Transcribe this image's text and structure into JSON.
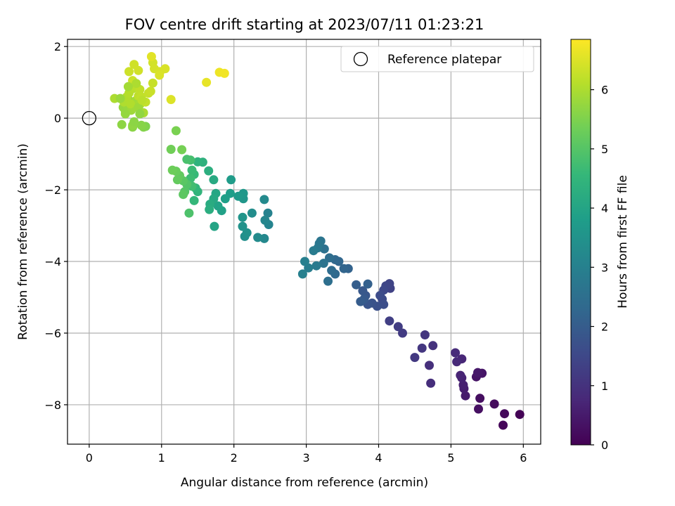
{
  "chart_data": {
    "type": "scatter",
    "title": "FOV centre drift starting at 2023/07/11 01:23:21",
    "xlabel": "Angular distance from reference (arcmin)",
    "ylabel": "Rotation from reference (arcmin)",
    "xlim": [
      -0.3,
      6.24
    ],
    "ylim": [
      -9.1,
      2.2
    ],
    "x_ticks": [
      0,
      1,
      2,
      3,
      4,
      5,
      6
    ],
    "x_tick_labels": [
      "0",
      "1",
      "2",
      "3",
      "4",
      "5",
      "6"
    ],
    "y_ticks": [
      2,
      0,
      -2,
      -4,
      -6,
      -8
    ],
    "y_tick_labels": [
      "2",
      "0",
      "−2",
      "−4",
      "−6",
      "−8"
    ],
    "grid": true,
    "legend": {
      "position": "top-right",
      "label": "Reference platepar"
    },
    "reference_point": {
      "x": 0,
      "y": 0
    },
    "colorbar": {
      "label": "Hours from first FF file",
      "min": 0,
      "max": 6.85,
      "ticks": [
        0,
        1,
        2,
        3,
        4,
        5,
        6
      ],
      "tick_labels": [
        "0",
        "1",
        "2",
        "3",
        "4",
        "5",
        "6"
      ],
      "colormap": "viridis",
      "colors": [
        "#440154",
        "#482878",
        "#3e4989",
        "#31688e",
        "#26828e",
        "#1f9e89",
        "#35b779",
        "#6ece58",
        "#b5de2b",
        "#fde725"
      ]
    },
    "series": [
      {
        "points": [
          [
            5.95,
            -8.27,
            0.05
          ],
          [
            5.72,
            -8.57,
            0.1
          ],
          [
            5.74,
            -8.25,
            0.15
          ],
          [
            5.6,
            -7.98,
            0.2
          ],
          [
            5.4,
            -7.82,
            0.25
          ],
          [
            5.38,
            -8.12,
            0.3
          ],
          [
            5.35,
            -7.22,
            0.35
          ],
          [
            5.43,
            -7.12,
            0.4
          ],
          [
            5.37,
            -7.1,
            0.45
          ],
          [
            5.2,
            -7.75,
            0.5
          ],
          [
            5.18,
            -7.55,
            0.55
          ],
          [
            5.17,
            -7.45,
            0.6
          ],
          [
            5.15,
            -7.25,
            0.65
          ],
          [
            5.13,
            -7.18,
            0.7
          ],
          [
            5.15,
            -6.72,
            0.75
          ],
          [
            5.08,
            -6.8,
            0.8
          ],
          [
            5.06,
            -6.55,
            0.85
          ],
          [
            4.72,
            -7.4,
            0.9
          ],
          [
            4.7,
            -6.9,
            0.95
          ],
          [
            4.75,
            -6.35,
            1.0
          ],
          [
            4.64,
            -6.05,
            1.05
          ],
          [
            4.6,
            -6.42,
            1.1
          ],
          [
            4.5,
            -6.68,
            1.15
          ],
          [
            4.33,
            -6.0,
            1.2
          ],
          [
            4.27,
            -5.82,
            1.25
          ],
          [
            4.15,
            -5.66,
            1.3
          ],
          [
            4.16,
            -4.75,
            1.35
          ],
          [
            4.15,
            -4.62,
            1.4
          ],
          [
            4.1,
            -4.68,
            1.45
          ],
          [
            4.07,
            -4.8,
            1.5
          ],
          [
            4.05,
            -5.05,
            1.55
          ],
          [
            4.02,
            -4.95,
            1.6
          ],
          [
            4.07,
            -5.2,
            1.65
          ],
          [
            3.98,
            -5.25,
            1.7
          ],
          [
            3.91,
            -5.16,
            1.75
          ],
          [
            3.85,
            -5.2,
            1.8
          ],
          [
            3.82,
            -4.95,
            1.85
          ],
          [
            3.78,
            -4.82,
            1.9
          ],
          [
            3.8,
            -5.05,
            1.95
          ],
          [
            3.75,
            -5.12,
            2.0
          ],
          [
            3.69,
            -4.65,
            2.05
          ],
          [
            3.85,
            -4.63,
            2.1
          ],
          [
            3.58,
            -4.2,
            2.15
          ],
          [
            3.52,
            -4.2,
            2.2
          ],
          [
            3.45,
            -4.0,
            2.25
          ],
          [
            3.4,
            -3.95,
            2.3
          ],
          [
            3.4,
            -4.35,
            2.35
          ],
          [
            3.35,
            -4.25,
            2.4
          ],
          [
            3.32,
            -3.9,
            2.45
          ],
          [
            3.3,
            -4.55,
            2.5
          ],
          [
            3.25,
            -3.65,
            2.55
          ],
          [
            3.24,
            -4.05,
            2.6
          ],
          [
            3.2,
            -3.43,
            2.65
          ],
          [
            3.18,
            -3.5,
            2.7
          ],
          [
            3.16,
            -3.62,
            2.75
          ],
          [
            3.14,
            -4.12,
            2.8
          ],
          [
            3.1,
            -3.7,
            2.85
          ],
          [
            3.03,
            -4.18,
            2.9
          ],
          [
            2.98,
            -4.0,
            2.95
          ],
          [
            2.95,
            -4.35,
            3.0
          ],
          [
            2.47,
            -2.65,
            3.05
          ],
          [
            2.48,
            -2.97,
            3.1
          ],
          [
            2.43,
            -2.85,
            3.15
          ],
          [
            2.42,
            -3.36,
            3.2
          ],
          [
            2.42,
            -2.27,
            3.25
          ],
          [
            2.33,
            -3.33,
            3.3
          ],
          [
            2.25,
            -2.65,
            3.35
          ],
          [
            2.15,
            -3.3,
            3.4
          ],
          [
            2.18,
            -3.2,
            3.45
          ],
          [
            2.12,
            -3.02,
            3.5
          ],
          [
            2.12,
            -2.77,
            3.55
          ],
          [
            2.13,
            -2.25,
            3.6
          ],
          [
            2.13,
            -2.1,
            3.65
          ],
          [
            2.06,
            -2.18,
            3.7
          ],
          [
            1.96,
            -1.72,
            3.75
          ],
          [
            1.95,
            -2.1,
            3.8
          ],
          [
            1.88,
            -2.25,
            3.85
          ],
          [
            1.83,
            -2.58,
            3.9
          ],
          [
            1.78,
            -2.45,
            3.95
          ],
          [
            1.73,
            -3.02,
            4.0
          ],
          [
            1.75,
            -2.1,
            4.05
          ],
          [
            1.72,
            -2.25,
            4.1
          ],
          [
            1.72,
            -1.72,
            4.15
          ],
          [
            1.67,
            -2.4,
            4.2
          ],
          [
            1.66,
            -2.55,
            4.25
          ],
          [
            1.65,
            -1.47,
            4.3
          ],
          [
            1.57,
            -1.23,
            4.35
          ],
          [
            1.5,
            -1.22,
            4.4
          ],
          [
            1.5,
            -2.05,
            4.45
          ],
          [
            1.47,
            -1.95,
            4.5
          ],
          [
            1.45,
            -2.3,
            4.55
          ],
          [
            1.45,
            -1.57,
            4.6
          ],
          [
            1.42,
            -1.45,
            4.65
          ],
          [
            1.4,
            -1.68,
            4.7
          ],
          [
            1.42,
            -1.9,
            4.75
          ],
          [
            1.4,
            -1.17,
            4.8
          ],
          [
            1.35,
            -1.15,
            4.85
          ],
          [
            1.38,
            -2.65,
            4.9
          ],
          [
            1.35,
            -1.85,
            4.95
          ],
          [
            1.32,
            -2.05,
            5.0
          ],
          [
            1.3,
            -1.75,
            5.05
          ],
          [
            1.3,
            -2.13,
            5.1
          ],
          [
            1.25,
            -1.6,
            5.15
          ],
          [
            1.22,
            -1.72,
            5.2
          ],
          [
            1.2,
            -1.48,
            5.25
          ],
          [
            1.15,
            -1.45,
            5.3
          ],
          [
            1.13,
            -0.87,
            5.35
          ],
          [
            1.28,
            -0.88,
            5.4
          ],
          [
            1.2,
            -0.35,
            5.45
          ],
          [
            0.78,
            -0.23,
            5.5
          ],
          [
            0.75,
            -0.25,
            5.55
          ],
          [
            0.72,
            -0.2,
            5.6
          ],
          [
            0.6,
            -0.25,
            5.63
          ],
          [
            0.45,
            -0.18,
            5.66
          ],
          [
            0.6,
            -0.2,
            5.69
          ],
          [
            0.5,
            0.2,
            5.72
          ],
          [
            0.47,
            0.3,
            5.75
          ],
          [
            0.52,
            0.35,
            5.78
          ],
          [
            0.55,
            0.5,
            5.81
          ],
          [
            0.58,
            0.22,
            5.84
          ],
          [
            0.62,
            0.3,
            5.87
          ],
          [
            0.65,
            0.5,
            5.9
          ],
          [
            0.7,
            0.38,
            5.93
          ],
          [
            0.75,
            0.15,
            5.96
          ],
          [
            0.35,
            0.55,
            5.99
          ],
          [
            0.48,
            0.45,
            6.02
          ],
          [
            0.52,
            0.6,
            6.05
          ],
          [
            0.55,
            0.7,
            6.08
          ],
          [
            0.6,
            0.82,
            6.11
          ],
          [
            0.63,
            0.88,
            6.14
          ],
          [
            0.68,
            0.62,
            6.17
          ],
          [
            0.7,
            0.8,
            6.2
          ],
          [
            0.72,
            0.6,
            6.22
          ],
          [
            0.78,
            0.45,
            6.24
          ],
          [
            0.82,
            0.7,
            6.26
          ],
          [
            0.88,
            0.98,
            6.28
          ],
          [
            0.85,
            0.75,
            6.3
          ],
          [
            0.6,
            1.05,
            6.32
          ],
          [
            0.55,
            1.3,
            6.34
          ],
          [
            0.62,
            1.5,
            6.36
          ],
          [
            0.68,
            1.33,
            6.38
          ],
          [
            0.88,
            1.55,
            6.4
          ],
          [
            0.9,
            1.38,
            6.42
          ],
          [
            0.98,
            1.3,
            6.44
          ],
          [
            1.05,
            1.38,
            6.46
          ],
          [
            0.97,
            1.2,
            6.48
          ],
          [
            1.13,
            0.52,
            6.5
          ],
          [
            0.86,
            1.72,
            6.55
          ],
          [
            1.62,
            1.0,
            6.62
          ],
          [
            1.8,
            1.28,
            6.68
          ],
          [
            1.87,
            1.25,
            6.72
          ],
          [
            0.65,
            0.97,
            6.0
          ],
          [
            0.57,
            0.4,
            6.05
          ],
          [
            0.68,
            0.3,
            5.85
          ],
          [
            0.43,
            0.55,
            5.8
          ],
          [
            0.5,
            0.12,
            5.75
          ],
          [
            0.54,
            0.88,
            5.9
          ],
          [
            0.7,
            0.12,
            5.7
          ],
          [
            0.62,
            -0.1,
            5.65
          ],
          [
            0.73,
            0.5,
            6.15
          ]
        ]
      }
    ]
  }
}
